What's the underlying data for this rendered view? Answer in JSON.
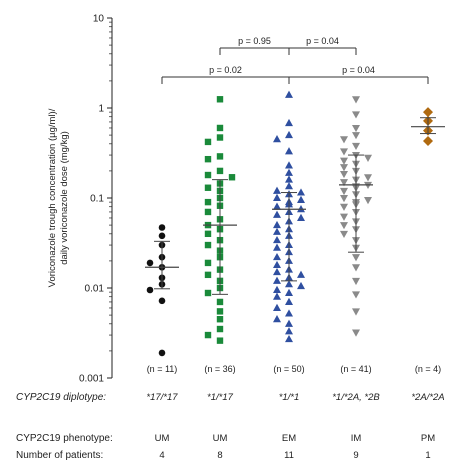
{
  "chart_data": {
    "type": "scatter",
    "title": "",
    "ylabel_line1": "Voriconazole trough concentration (µg/ml)/",
    "ylabel_line2": "daily voriconazole dose (mg/kg)",
    "yscale": "log",
    "ylim": [
      0.001,
      10
    ],
    "yticks": [
      "10",
      "1",
      "0.1",
      "0.01",
      "0.001"
    ],
    "grid": false,
    "groups": [
      {
        "diplotype": "*17/*17",
        "phenotype": "UM",
        "patients": "4",
        "n_label": "(n = 11)",
        "marker": "circle",
        "color": "#111111",
        "median": 0.017,
        "lower": 0.0098,
        "upper": 0.033,
        "values": [
          0.047,
          0.038,
          0.03,
          0.022,
          0.019,
          0.017,
          0.013,
          0.011,
          0.0095,
          0.0072,
          0.0019
        ]
      },
      {
        "diplotype": "*1/*17",
        "phenotype": "UM",
        "patients": "8",
        "n_label": "(n = 36)",
        "marker": "square",
        "color": "#1a8a3a",
        "median": 0.05,
        "lower": 0.0085,
        "upper": 0.16,
        "values": [
          1.25,
          0.6,
          0.47,
          0.42,
          0.29,
          0.27,
          0.2,
          0.18,
          0.17,
          0.145,
          0.13,
          0.12,
          0.1,
          0.09,
          0.082,
          0.07,
          0.058,
          0.05,
          0.045,
          0.04,
          0.034,
          0.03,
          0.026,
          0.022,
          0.019,
          0.016,
          0.014,
          0.012,
          0.01,
          0.0088,
          0.007,
          0.0055,
          0.0045,
          0.0035,
          0.003,
          0.0026
        ]
      },
      {
        "diplotype": "*1/*1",
        "phenotype": "EM",
        "patients": "11",
        "n_label": "(n = 50)",
        "marker": "triangle-up",
        "color": "#2f4fa0",
        "median": 0.075,
        "lower": 0.012,
        "upper": 0.115,
        "values": [
          1.4,
          0.68,
          0.5,
          0.45,
          0.33,
          0.23,
          0.19,
          0.16,
          0.135,
          0.12,
          0.115,
          0.11,
          0.1,
          0.095,
          0.09,
          0.085,
          0.08,
          0.075,
          0.07,
          0.065,
          0.06,
          0.055,
          0.05,
          0.045,
          0.042,
          0.038,
          0.034,
          0.03,
          0.028,
          0.025,
          0.022,
          0.02,
          0.018,
          0.016,
          0.015,
          0.014,
          0.013,
          0.012,
          0.011,
          0.0105,
          0.0095,
          0.0088,
          0.008,
          0.007,
          0.006,
          0.0052,
          0.0045,
          0.004,
          0.0033,
          0.0027
        ]
      },
      {
        "diplotype": "*1/*2A, *2B",
        "phenotype": "IM",
        "patients": "9",
        "n_label": "(n = 41)",
        "marker": "triangle-down",
        "color": "#8a8a8a",
        "median": 0.14,
        "lower": 0.025,
        "upper": 0.3,
        "values": [
          1.25,
          0.85,
          0.6,
          0.5,
          0.45,
          0.38,
          0.33,
          0.3,
          0.28,
          0.26,
          0.24,
          0.22,
          0.2,
          0.185,
          0.17,
          0.16,
          0.15,
          0.14,
          0.135,
          0.13,
          0.12,
          0.11,
          0.1,
          0.095,
          0.09,
          0.085,
          0.08,
          0.07,
          0.062,
          0.055,
          0.05,
          0.045,
          0.04,
          0.034,
          0.028,
          0.022,
          0.017,
          0.012,
          0.0085,
          0.0055,
          0.0032
        ]
      },
      {
        "diplotype": "*2A/*2A",
        "phenotype": "PM",
        "patients": "1",
        "n_label": "(n = 4)",
        "marker": "diamond",
        "color": "#b06a10",
        "median": 0.62,
        "lower": 0.52,
        "upper": 0.78,
        "values": [
          0.9,
          0.72,
          0.56,
          0.43
        ]
      }
    ],
    "comparisons": [
      {
        "from": 1,
        "to": 2,
        "level": 1,
        "label": "p = 0.95"
      },
      {
        "from": 2,
        "to": 3,
        "level": 1,
        "label": "p = 0.04"
      },
      {
        "from": 0,
        "to": 2,
        "level": 0,
        "label": "p = 0.02"
      },
      {
        "from": 2,
        "to": 4,
        "level": 0,
        "label": "p = 0.04"
      }
    ],
    "table": {
      "diplotype_label": "CYP2C19 diplotype:",
      "phenotype_label": "CYP2C19 phenotype:",
      "patients_label": "Number of patients:"
    }
  }
}
